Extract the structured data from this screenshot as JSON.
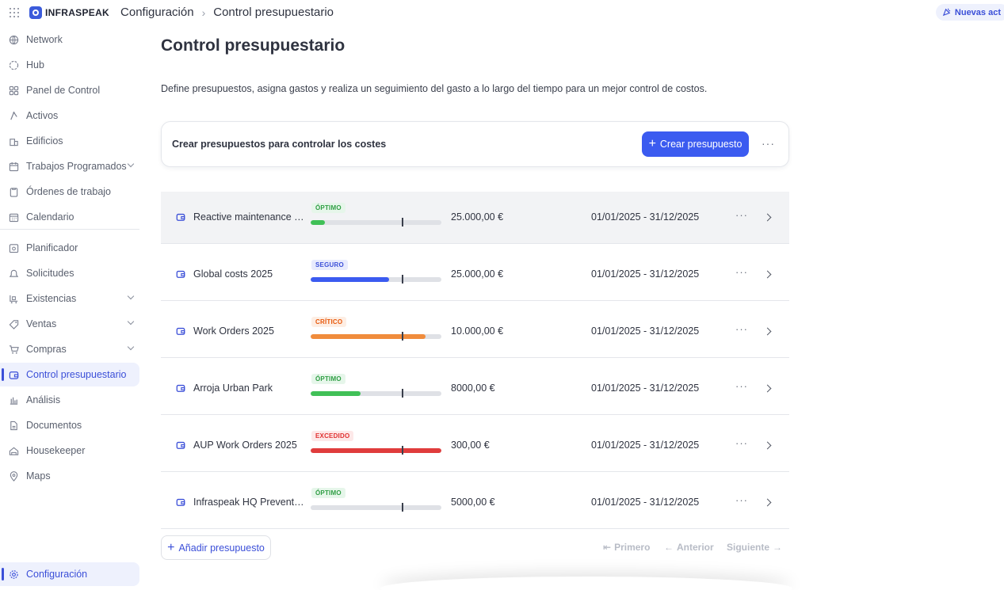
{
  "topbar": {
    "brand": "INFRASPEAK",
    "breadcrumb": [
      "Configuración",
      "Control presupuestario"
    ],
    "news_label": "Nuevas act"
  },
  "sidebar": {
    "items": [
      {
        "label": "Network",
        "icon": "globe-icon"
      },
      {
        "label": "Hub",
        "icon": "hub-icon"
      },
      {
        "label": "Panel de Control",
        "icon": "dashboard-icon"
      },
      {
        "label": "Activos",
        "icon": "assets-icon"
      },
      {
        "label": "Edificios",
        "icon": "building-icon"
      },
      {
        "label": "Trabajos Programados",
        "icon": "calendar-clock-icon",
        "expandable": true
      },
      {
        "label": "Órdenes de trabajo",
        "icon": "clipboard-icon"
      },
      {
        "label": "Calendario",
        "icon": "calendar-icon"
      },
      {
        "label": "Planificador",
        "icon": "planner-icon"
      },
      {
        "label": "Solicitudes",
        "icon": "bell-icon"
      },
      {
        "label": "Existencias",
        "icon": "stock-icon",
        "expandable": true
      },
      {
        "label": "Ventas",
        "icon": "tag-icon",
        "expandable": true
      },
      {
        "label": "Compras",
        "icon": "cart-icon",
        "expandable": true
      },
      {
        "label": "Control presupuestario",
        "icon": "wallet-icon",
        "active": true
      },
      {
        "label": "Análisis",
        "icon": "bar-chart-icon"
      },
      {
        "label": "Documentos",
        "icon": "document-icon"
      },
      {
        "label": "Housekeeper",
        "icon": "housekeeper-icon"
      },
      {
        "label": "Maps",
        "icon": "map-pin-icon"
      }
    ],
    "footer_item": {
      "label": "Configuración",
      "icon": "gear-icon"
    }
  },
  "main": {
    "title": "Control presupuestario",
    "description": "Define presupuestos, asigna gastos y realiza un seguimiento del gasto a lo largo del tiempo para un mejor control de costos.",
    "cta": {
      "text": "Crear presupuestos para controlar los costes",
      "button_label": "Crear presupuesto"
    },
    "budgets": [
      {
        "name": "Reactive maintenance S...",
        "status": "ÓPTIMO",
        "status_color": "#2f9e44",
        "status_bg": "#e6f6ea",
        "bar_color": "#40c057",
        "spent_fraction": 0.11,
        "amount": "25.000,00 €",
        "period": "01/01/2025 - 31/12/2025"
      },
      {
        "name": "Global costs 2025",
        "status": "SEGURO",
        "status_color": "#3b4fd8",
        "status_bg": "#e8ebfd",
        "bar_color": "#3b5bf0",
        "spent_fraction": 0.6,
        "amount": "25.000,00 €",
        "period": "01/01/2025 - 31/12/2025"
      },
      {
        "name": "Work Orders 2025",
        "status": "CRÍTICO",
        "status_color": "#e8590c",
        "status_bg": "#fdeee4",
        "bar_color": "#f08c3c",
        "spent_fraction": 0.88,
        "amount": "10.000,00 €",
        "period": "01/01/2025 - 31/12/2025"
      },
      {
        "name": "Arroja Urban Park",
        "status": "ÓPTIMO",
        "status_color": "#2f9e44",
        "status_bg": "#e6f6ea",
        "bar_color": "#40c057",
        "spent_fraction": 0.38,
        "amount": "8000,00 €",
        "period": "01/01/2025 - 31/12/2025"
      },
      {
        "name": "AUP Work Orders 2025",
        "status": "EXCEDIDO",
        "status_color": "#e03131",
        "status_bg": "#fde8e8",
        "bar_color": "#e03c3c",
        "spent_fraction": 1.0,
        "amount": "300,00 €",
        "period": "01/01/2025 - 31/12/2025"
      },
      {
        "name": "Infraspeak HQ Preventive",
        "status": "ÓPTIMO",
        "status_color": "#2f9e44",
        "status_bg": "#e6f6ea",
        "bar_color": "#40c057",
        "spent_fraction": 0.0,
        "amount": "5000,00 €",
        "period": "01/01/2025 - 31/12/2025"
      }
    ],
    "add_budget_label": "Añadir presupuesto",
    "pagination": {
      "first": "Primero",
      "prev": "Anterior",
      "next": "Siguiente"
    }
  },
  "colors": {
    "accent": "#3b5bf0",
    "active_bg": "#eef1fd"
  }
}
